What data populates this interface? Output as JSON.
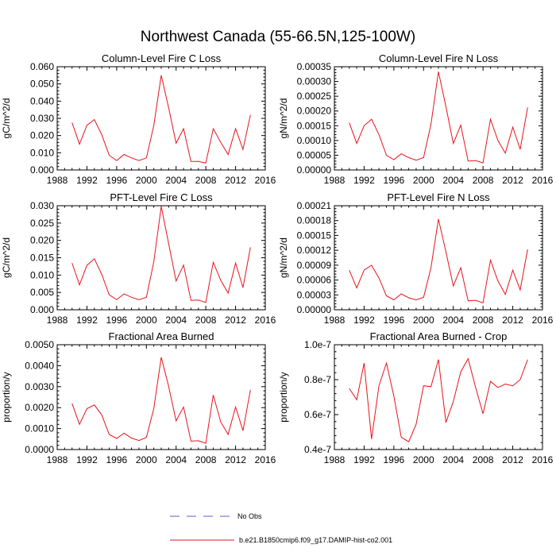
{
  "figure": {
    "title": "Northwest Canada (55-66.5N,125-100W)"
  },
  "legend": {
    "entries": [
      {
        "label": "No Obs",
        "style": "dashed",
        "color": "#5b5bd6"
      },
      {
        "label": "b.e21.B1850cmip6.f09_g17.DAMIP-hist-co2.001",
        "style": "solid",
        "color": "#e8141c"
      }
    ]
  },
  "chart_data": [
    {
      "type": "line",
      "title": "Column-Level Fire C Loss",
      "ylabel": "gC/m^2/d",
      "xlim": [
        1988,
        2016
      ],
      "xticks": [
        "1988",
        "1992",
        "1996",
        "2000",
        "2004",
        "2008",
        "2012",
        "2016"
      ],
      "ylim": [
        0,
        0.06
      ],
      "yticks": [
        "0.000",
        "0.010",
        "0.020",
        "0.030",
        "0.040",
        "0.050",
        "0.060"
      ],
      "series": [
        {
          "color": "#e8141c",
          "x": [
            1990,
            1991,
            1992,
            1993,
            1994,
            1995,
            1996,
            1997,
            1998,
            1999,
            2000,
            2001,
            2002,
            2003,
            2004,
            2005,
            2006,
            2007,
            2008,
            2009,
            2010,
            2011,
            2012,
            2013,
            2014
          ],
          "values": [
            0.0275,
            0.015,
            0.026,
            0.0293,
            0.0205,
            0.0085,
            0.0055,
            0.009,
            0.007,
            0.0055,
            0.007,
            0.0258,
            0.055,
            0.036,
            0.0155,
            0.024,
            0.005,
            0.005,
            0.004,
            0.024,
            0.016,
            0.009,
            0.024,
            0.012,
            0.032
          ]
        }
      ]
    },
    {
      "type": "line",
      "title": "Column-Level Fire N Loss",
      "ylabel": "gN/m^2/d",
      "xlim": [
        1988,
        2016
      ],
      "xticks": [
        "1988",
        "1992",
        "1996",
        "2000",
        "2004",
        "2008",
        "2012",
        "2016"
      ],
      "ylim": [
        0,
        0.00035
      ],
      "yticks": [
        "0.00000",
        "0.00005",
        "0.00010",
        "0.00015",
        "0.00020",
        "0.00025",
        "0.00030",
        "0.00035"
      ],
      "series": [
        {
          "color": "#e8141c",
          "x": [
            1990,
            1991,
            1992,
            1993,
            1994,
            1995,
            1996,
            1997,
            1998,
            1999,
            2000,
            2001,
            2002,
            2003,
            2004,
            2005,
            2006,
            2007,
            2008,
            2009,
            2010,
            2011,
            2012,
            2013,
            2014
          ],
          "values": [
            0.00016,
            9e-05,
            0.00015,
            0.000172,
            0.00012,
            5e-05,
            3.5e-05,
            5.5e-05,
            4.2e-05,
            3.3e-05,
            4.2e-05,
            0.000155,
            0.000333,
            0.000215,
            9e-05,
            0.000152,
            3e-05,
            3.2e-05,
            2.4e-05,
            0.000172,
            0.0001,
            5.7e-05,
            0.000145,
            7e-05,
            0.000212
          ]
        }
      ]
    },
    {
      "type": "line",
      "title": "PFT-Level Fire C Loss",
      "ylabel": "gC/m^2/d",
      "xlim": [
        1988,
        2016
      ],
      "xticks": [
        "1988",
        "1992",
        "1996",
        "2000",
        "2004",
        "2008",
        "2012",
        "2016"
      ],
      "ylim": [
        0,
        0.03
      ],
      "yticks": [
        "0.000",
        "0.005",
        "0.010",
        "0.015",
        "0.020",
        "0.025",
        "0.030"
      ],
      "series": [
        {
          "color": "#e8141c",
          "x": [
            1990,
            1991,
            1992,
            1993,
            1994,
            1995,
            1996,
            1997,
            1998,
            1999,
            2000,
            2001,
            2002,
            2003,
            2004,
            2005,
            2006,
            2007,
            2008,
            2009,
            2010,
            2011,
            2012,
            2013,
            2014
          ],
          "values": [
            0.0135,
            0.0072,
            0.0128,
            0.0147,
            0.0102,
            0.0043,
            0.0029,
            0.0046,
            0.0036,
            0.0029,
            0.0036,
            0.0138,
            0.0298,
            0.019,
            0.0083,
            0.0129,
            0.0027,
            0.0028,
            0.0021,
            0.0137,
            0.0085,
            0.0048,
            0.0135,
            0.0064,
            0.018
          ]
        }
      ]
    },
    {
      "type": "line",
      "title": "PFT-Level Fire N Loss",
      "ylabel": "gN/m^2/d",
      "xlim": [
        1988,
        2016
      ],
      "xticks": [
        "1988",
        "1992",
        "1996",
        "2000",
        "2004",
        "2008",
        "2012",
        "2016"
      ],
      "ylim": [
        0,
        0.00021
      ],
      "yticks": [
        "0.00000",
        "0.00003",
        "0.00006",
        "0.00009",
        "0.00012",
        "0.00015",
        "0.00018",
        "0.00021"
      ],
      "series": [
        {
          "color": "#e8141c",
          "x": [
            1990,
            1991,
            1992,
            1993,
            1994,
            1995,
            1996,
            1997,
            1998,
            1999,
            2000,
            2001,
            2002,
            2003,
            2004,
            2005,
            2006,
            2007,
            2008,
            2009,
            2010,
            2011,
            2012,
            2013,
            2014
          ],
          "values": [
            8e-05,
            4.4e-05,
            8e-05,
            9e-05,
            6.4e-05,
            2.8e-05,
            2e-05,
            3.2e-05,
            2.4e-05,
            2e-05,
            2.5e-05,
            8.5e-05,
            0.000183,
            0.000117,
            4.8e-05,
            8.5e-05,
            1.8e-05,
            1.9e-05,
            1.4e-05,
            0.0001,
            5.8e-05,
            3.1e-05,
            8e-05,
            4e-05,
            0.000122
          ]
        }
      ]
    },
    {
      "type": "line",
      "title": "Fractional Area Burned",
      "ylabel": "proportion/y",
      "xlim": [
        1988,
        2016
      ],
      "xticks": [
        "1988",
        "1992",
        "1996",
        "2000",
        "2004",
        "2008",
        "2012",
        "2016"
      ],
      "ylim": [
        0,
        0.005
      ],
      "yticks": [
        "0.0000",
        "0.0010",
        "0.0020",
        "0.0030",
        "0.0040",
        "0.0050"
      ],
      "series": [
        {
          "color": "#e8141c",
          "x": [
            1990,
            1991,
            1992,
            1993,
            1994,
            1995,
            1996,
            1997,
            1998,
            1999,
            2000,
            2001,
            2002,
            2003,
            2004,
            2005,
            2006,
            2007,
            2008,
            2009,
            2010,
            2011,
            2012,
            2013,
            2014
          ],
          "values": [
            0.0022,
            0.0012,
            0.00195,
            0.00213,
            0.00165,
            0.00072,
            0.00053,
            0.00078,
            0.00055,
            0.00043,
            0.00058,
            0.00195,
            0.0044,
            0.003,
            0.00137,
            0.00203,
            0.0004,
            0.00042,
            0.0003,
            0.0026,
            0.00132,
            0.00072,
            0.00203,
            0.0009,
            0.00285
          ]
        }
      ]
    },
    {
      "type": "line",
      "title": "Fractional Area Burned - Crop",
      "ylabel": "proportion/y",
      "xlim": [
        1988,
        2016
      ],
      "xticks": [
        "1988",
        "1992",
        "1996",
        "2000",
        "2004",
        "2008",
        "2012",
        "2016"
      ],
      "ylim": [
        4e-08,
        1e-07
      ],
      "yticks": [
        "0.4e-7",
        "0.6e-7",
        "0.8e-7",
        "1.0e-7"
      ],
      "series": [
        {
          "color": "#e8141c",
          "x": [
            1990,
            1991,
            1992,
            1993,
            1994,
            1995,
            1996,
            1997,
            1998,
            1999,
            2000,
            2001,
            2002,
            2003,
            2004,
            2005,
            2006,
            2007,
            2008,
            2009,
            2010,
            2011,
            2012,
            2013,
            2014
          ],
          "values": [
            7.5e-08,
            6.85e-08,
            8.95e-08,
            4.6e-08,
            7.65e-08,
            8.95e-08,
            7.05e-08,
            4.7e-08,
            4.45e-08,
            5.45e-08,
            7.65e-08,
            7.6e-08,
            9.15e-08,
            5.55e-08,
            6.75e-08,
            8.45e-08,
            9.2e-08,
            7.55e-08,
            6.05e-08,
            7.9e-08,
            7.55e-08,
            7.75e-08,
            7.65e-08,
            8e-08,
            9.15e-08
          ]
        }
      ]
    }
  ]
}
